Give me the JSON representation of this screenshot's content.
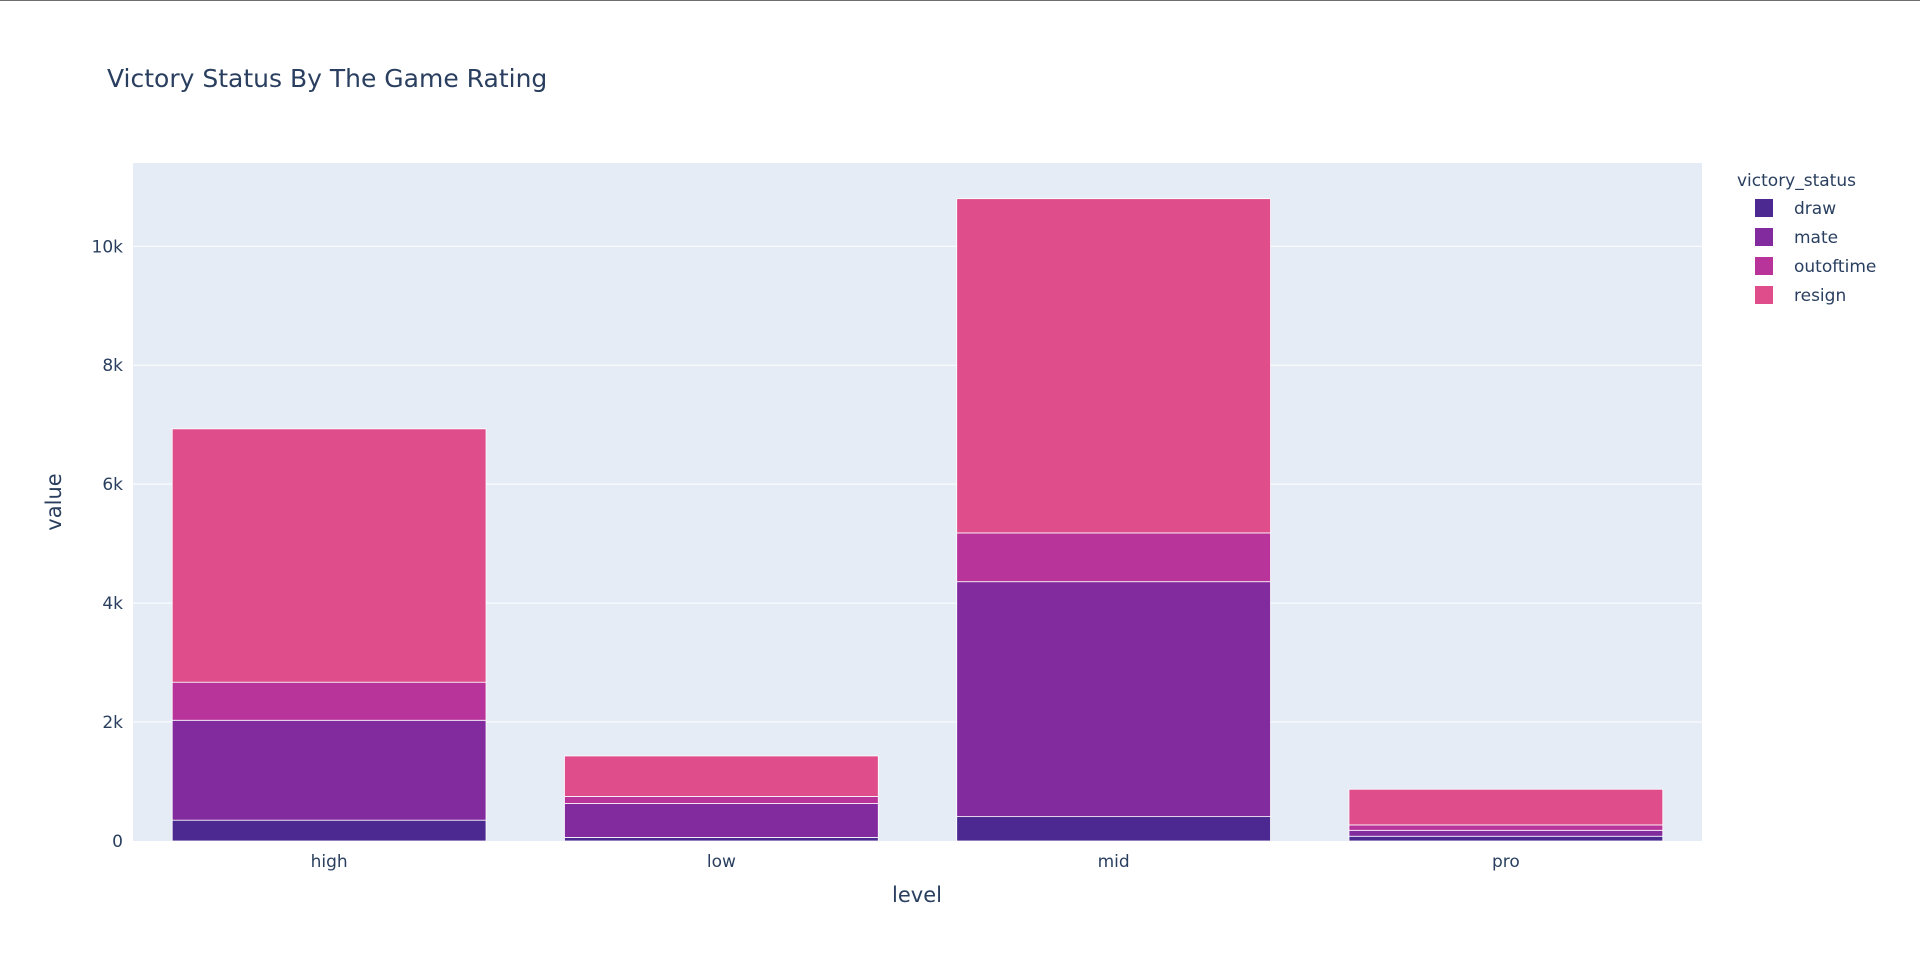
{
  "chart_data": {
    "type": "bar",
    "barmode": "stack",
    "title": "Victory Status By The Game Rating",
    "xlabel": "level",
    "ylabel": "value",
    "categories": [
      "high",
      "low",
      "mid",
      "pro"
    ],
    "ylim": [
      0,
      11400
    ],
    "yticks": [
      {
        "value": 0,
        "label": "0"
      },
      {
        "value": 2000,
        "label": "2k"
      },
      {
        "value": 4000,
        "label": "4k"
      },
      {
        "value": 6000,
        "label": "6k"
      },
      {
        "value": 8000,
        "label": "8k"
      },
      {
        "value": 10000,
        "label": "10k"
      }
    ],
    "legend_title": "victory_status",
    "legend_position": "top-right, outside plot",
    "grid": true,
    "plot_background": "#e5ecf6",
    "series": [
      {
        "name": "draw",
        "color": "#4b2991",
        "values": [
          350,
          60,
          410,
          80
        ]
      },
      {
        "name": "mate",
        "color": "#822b9f",
        "values": [
          1680,
          570,
          3950,
          100
        ]
      },
      {
        "name": "outoftime",
        "color": "#b8339a",
        "values": [
          640,
          120,
          820,
          90
        ]
      },
      {
        "name": "resign",
        "color": "#df4e8a",
        "values": [
          4260,
          680,
          5620,
          600
        ]
      }
    ]
  }
}
